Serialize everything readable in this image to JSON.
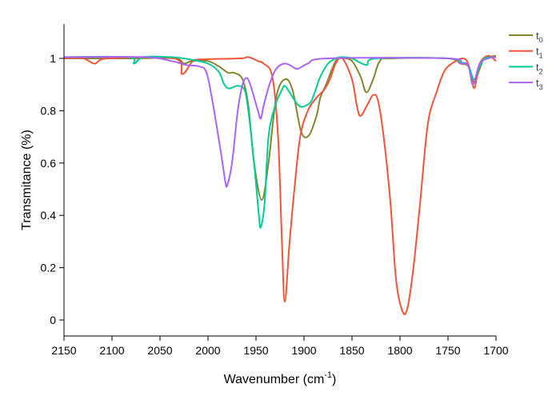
{
  "chart_data": {
    "type": "line",
    "title": "",
    "xlabel_parts": [
      "Wavenumber (cm",
      "-1",
      ")"
    ],
    "ylabel": "Transmitance (%)",
    "xlim": [
      2150,
      1700
    ],
    "ylim": [
      -0.06,
      1.13
    ],
    "xticks": [
      2150,
      2100,
      2050,
      2000,
      1950,
      1900,
      1850,
      1800,
      1750,
      1700
    ],
    "xtick_labels": [
      "2150",
      "2100",
      "2050",
      "2000",
      "1950",
      "1900",
      "1850",
      "1800",
      "1750",
      "1700"
    ],
    "yticks": [
      0,
      0.2,
      0.4,
      0.6,
      0.8,
      1
    ],
    "ytick_labels": [
      "0",
      "0.2",
      "0.4",
      "0.6",
      "0.8",
      "1"
    ],
    "grid": false,
    "legend_position": "top-right outside",
    "series": [
      {
        "name": "t0",
        "base": "t",
        "sub": "0",
        "color": "#858530",
        "points": [
          [
            2150,
            1.0
          ],
          [
            2083,
            1.0
          ],
          [
            2035,
            1.0
          ],
          [
            2025,
            0.98
          ],
          [
            2017,
            0.99
          ],
          [
            2000,
            0.99
          ],
          [
            1989,
            0.97
          ],
          [
            1979,
            0.945
          ],
          [
            1973,
            0.945
          ],
          [
            1964,
            0.92
          ],
          [
            1958,
            0.82
          ],
          [
            1952,
            0.6
          ],
          [
            1944,
            0.459
          ],
          [
            1937,
            0.6
          ],
          [
            1929,
            0.85
          ],
          [
            1920,
            0.92
          ],
          [
            1912,
            0.88
          ],
          [
            1903,
            0.72
          ],
          [
            1895,
            0.705
          ],
          [
            1887,
            0.78
          ],
          [
            1883,
            0.85
          ],
          [
            1877,
            0.9
          ],
          [
            1867,
            0.99
          ],
          [
            1860,
            1.0
          ],
          [
            1850,
            0.99
          ],
          [
            1841,
            0.93
          ],
          [
            1835,
            0.87
          ],
          [
            1828,
            0.92
          ],
          [
            1821,
            0.99
          ],
          [
            1810,
            1.0
          ],
          [
            1750,
            1.0
          ],
          [
            1737,
            0.98
          ],
          [
            1729,
            0.97
          ],
          [
            1723,
            0.91
          ],
          [
            1717,
            0.96
          ],
          [
            1712,
            1.0
          ],
          [
            1700,
            1.01
          ]
        ]
      },
      {
        "name": "t1",
        "base": "t",
        "sub": "1",
        "color": "#EF553B",
        "points": [
          [
            2150,
            1.0
          ],
          [
            2130,
            1.0
          ],
          [
            2118,
            0.98
          ],
          [
            2104,
            1.0
          ],
          [
            2035,
            1.0
          ],
          [
            2027,
            0.94
          ],
          [
            2017,
            0.985
          ],
          [
            2012,
            0.995
          ],
          [
            1967,
            1.0
          ],
          [
            1958,
            1.005
          ],
          [
            1948,
            0.99
          ],
          [
            1942,
            0.98
          ],
          [
            1933,
            0.93
          ],
          [
            1927,
            0.7
          ],
          [
            1923,
            0.3
          ],
          [
            1920,
            0.07
          ],
          [
            1915,
            0.3
          ],
          [
            1910,
            0.5
          ],
          [
            1904,
            0.7
          ],
          [
            1896,
            0.8
          ],
          [
            1887,
            0.85
          ],
          [
            1879,
            0.88
          ],
          [
            1873,
            0.92
          ],
          [
            1867,
            0.98
          ],
          [
            1860,
            1.0
          ],
          [
            1850,
            0.92
          ],
          [
            1845,
            0.82
          ],
          [
            1841,
            0.78
          ],
          [
            1833,
            0.83
          ],
          [
            1828,
            0.86
          ],
          [
            1823,
            0.84
          ],
          [
            1817,
            0.7
          ],
          [
            1810,
            0.45
          ],
          [
            1804,
            0.15
          ],
          [
            1797,
            0.03
          ],
          [
            1792,
            0.05
          ],
          [
            1786,
            0.2
          ],
          [
            1779,
            0.45
          ],
          [
            1771,
            0.75
          ],
          [
            1762,
            0.87
          ],
          [
            1754,
            0.95
          ],
          [
            1746,
            0.98
          ],
          [
            1735,
            1.0
          ],
          [
            1729,
            0.98
          ],
          [
            1725,
            0.91
          ],
          [
            1722,
            0.89
          ],
          [
            1717,
            0.98
          ],
          [
            1708,
            1.01
          ],
          [
            1700,
            0.99
          ]
        ]
      },
      {
        "name": "t2",
        "base": "t",
        "sub": "2",
        "color": "#00CC96",
        "points": [
          [
            2150,
            1.005
          ],
          [
            2083,
            1.005
          ],
          [
            2077,
            0.98
          ],
          [
            2067,
            1.005
          ],
          [
            2038,
            1.005
          ],
          [
            2017,
            0.995
          ],
          [
            2000,
            0.98
          ],
          [
            1989,
            0.95
          ],
          [
            1983,
            0.9
          ],
          [
            1978,
            0.885
          ],
          [
            1969,
            0.895
          ],
          [
            1962,
            0.88
          ],
          [
            1958,
            0.8
          ],
          [
            1952,
            0.6
          ],
          [
            1947,
            0.4
          ],
          [
            1945,
            0.355
          ],
          [
            1941,
            0.45
          ],
          [
            1937,
            0.7
          ],
          [
            1930,
            0.82
          ],
          [
            1923,
            0.88
          ],
          [
            1920,
            0.895
          ],
          [
            1915,
            0.87
          ],
          [
            1908,
            0.83
          ],
          [
            1903,
            0.815
          ],
          [
            1898,
            0.82
          ],
          [
            1892,
            0.84
          ],
          [
            1883,
            0.93
          ],
          [
            1875,
            0.98
          ],
          [
            1867,
            1.0
          ],
          [
            1860,
            1.005
          ],
          [
            1850,
            1.0
          ],
          [
            1835,
            0.975
          ],
          [
            1825,
            1.0
          ],
          [
            1750,
            1.0
          ],
          [
            1737,
            0.985
          ],
          [
            1729,
            0.975
          ],
          [
            1723,
            0.92
          ],
          [
            1717,
            0.97
          ],
          [
            1712,
            1.0
          ],
          [
            1700,
            1.005
          ]
        ]
      },
      {
        "name": "t3",
        "base": "t",
        "sub": "3",
        "color": "#AB63FA",
        "points": [
          [
            2150,
            1.005
          ],
          [
            2067,
            1.005
          ],
          [
            2038,
            0.99
          ],
          [
            2023,
            0.975
          ],
          [
            2010,
            0.97
          ],
          [
            2002,
            0.95
          ],
          [
            1996,
            0.85
          ],
          [
            1987,
            0.65
          ],
          [
            1982,
            0.53
          ],
          [
            1980,
            0.515
          ],
          [
            1975,
            0.6
          ],
          [
            1969,
            0.8
          ],
          [
            1964,
            0.9
          ],
          [
            1960,
            0.925
          ],
          [
            1956,
            0.9
          ],
          [
            1948,
            0.8
          ],
          [
            1945,
            0.77
          ],
          [
            1942,
            0.82
          ],
          [
            1936,
            0.9
          ],
          [
            1929,
            0.96
          ],
          [
            1921,
            0.98
          ],
          [
            1915,
            0.975
          ],
          [
            1907,
            0.96
          ],
          [
            1896,
            0.98
          ],
          [
            1875,
            1.0
          ],
          [
            1750,
            1.0
          ],
          [
            1737,
            0.98
          ],
          [
            1729,
            0.975
          ],
          [
            1724,
            0.9
          ],
          [
            1717,
            0.98
          ],
          [
            1708,
            1.0
          ],
          [
            1700,
            1.005
          ]
        ]
      }
    ]
  }
}
